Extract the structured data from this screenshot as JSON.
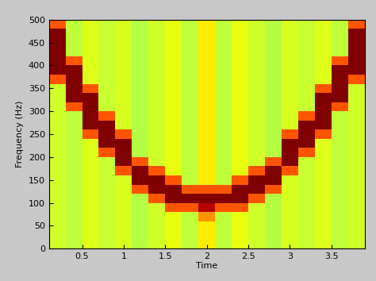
{
  "chart_data": {
    "type": "heatmap",
    "x_label": "Time",
    "y_label": "Frequency (Hz)",
    "x_edges": [
      0.1,
      0.3,
      0.5,
      0.7,
      0.9,
      1.1,
      1.3,
      1.5,
      1.7,
      1.9,
      2.1,
      2.3,
      2.5,
      2.7,
      2.9,
      3.1,
      3.3,
      3.5,
      3.7,
      3.9
    ],
    "y_edges": [
      0,
      20,
      40,
      60,
      80,
      100,
      120,
      140,
      160,
      180,
      200,
      220,
      240,
      260,
      280,
      300,
      320,
      340,
      360,
      380,
      400,
      420,
      440,
      460,
      480,
      500
    ],
    "cells": [
      [
        60,
        60,
        60,
        60,
        60,
        60,
        60,
        60,
        60,
        60,
        60,
        60,
        60,
        60,
        60,
        60,
        60,
        60,
        82,
        100,
        100,
        100,
        100,
        100,
        82
      ],
      [
        58,
        58,
        58,
        58,
        58,
        58,
        58,
        58,
        58,
        58,
        58,
        58,
        58,
        58,
        58,
        82,
        100,
        100,
        100,
        100,
        82,
        58,
        58,
        58,
        58
      ],
      [
        62,
        62,
        62,
        62,
        62,
        62,
        62,
        62,
        62,
        62,
        62,
        62,
        82,
        100,
        100,
        100,
        100,
        82,
        62,
        62,
        62,
        62,
        62,
        62,
        62
      ],
      [
        59,
        59,
        59,
        59,
        59,
        59,
        59,
        59,
        59,
        59,
        82,
        100,
        100,
        100,
        82,
        59,
        59,
        59,
        59,
        59,
        59,
        59,
        59,
        59,
        59
      ],
      [
        61,
        61,
        61,
        61,
        61,
        61,
        61,
        61,
        82,
        100,
        100,
        100,
        82,
        61,
        61,
        61,
        61,
        61,
        61,
        61,
        61,
        61,
        61,
        61,
        61
      ],
      [
        57,
        57,
        57,
        57,
        57,
        57,
        82,
        100,
        100,
        82,
        57,
        57,
        57,
        57,
        57,
        57,
        57,
        57,
        57,
        57,
        57,
        57,
        57,
        57,
        57
      ],
      [
        60,
        60,
        60,
        60,
        60,
        82,
        100,
        100,
        82,
        60,
        60,
        60,
        60,
        60,
        60,
        60,
        60,
        60,
        60,
        60,
        60,
        60,
        60,
        60,
        60
      ],
      [
        63,
        63,
        63,
        63,
        82,
        100,
        100,
        82,
        63,
        63,
        63,
        63,
        63,
        63,
        63,
        63,
        63,
        63,
        63,
        63,
        63,
        63,
        63,
        63,
        63
      ],
      [
        58,
        58,
        58,
        58,
        82,
        100,
        82,
        58,
        58,
        58,
        58,
        58,
        58,
        58,
        58,
        58,
        58,
        58,
        58,
        58,
        58,
        58,
        58,
        58,
        58
      ],
      [
        66,
        66,
        66,
        75,
        95,
        100,
        82,
        66,
        66,
        66,
        66,
        66,
        66,
        66,
        66,
        66,
        66,
        66,
        66,
        66,
        66,
        66,
        66,
        66,
        66
      ],
      [
        58,
        58,
        58,
        58,
        82,
        100,
        82,
        58,
        58,
        58,
        58,
        58,
        58,
        58,
        58,
        58,
        58,
        58,
        58,
        58,
        58,
        58,
        58,
        58,
        58
      ],
      [
        63,
        63,
        63,
        63,
        82,
        100,
        100,
        82,
        63,
        63,
        63,
        63,
        63,
        63,
        63,
        63,
        63,
        63,
        63,
        63,
        63,
        63,
        63,
        63,
        63
      ],
      [
        60,
        60,
        60,
        60,
        60,
        82,
        100,
        100,
        82,
        60,
        60,
        60,
        60,
        60,
        60,
        60,
        60,
        60,
        60,
        60,
        60,
        60,
        60,
        60,
        60
      ],
      [
        57,
        57,
        57,
        57,
        57,
        57,
        82,
        100,
        100,
        82,
        57,
        57,
        57,
        57,
        57,
        57,
        57,
        57,
        57,
        57,
        57,
        57,
        57,
        57,
        57
      ],
      [
        61,
        61,
        61,
        61,
        61,
        61,
        61,
        61,
        82,
        100,
        100,
        100,
        82,
        61,
        61,
        61,
        61,
        61,
        61,
        61,
        61,
        61,
        61,
        61,
        61
      ],
      [
        59,
        59,
        59,
        59,
        59,
        59,
        59,
        59,
        59,
        59,
        82,
        100,
        100,
        100,
        82,
        59,
        59,
        59,
        59,
        59,
        59,
        59,
        59,
        59,
        59
      ],
      [
        62,
        62,
        62,
        62,
        62,
        62,
        62,
        62,
        62,
        62,
        62,
        62,
        82,
        100,
        100,
        100,
        100,
        82,
        62,
        62,
        62,
        62,
        62,
        62,
        62
      ],
      [
        58,
        58,
        58,
        58,
        58,
        58,
        58,
        58,
        58,
        58,
        58,
        58,
        58,
        58,
        58,
        82,
        100,
        100,
        100,
        100,
        82,
        58,
        58,
        58,
        58
      ],
      [
        60,
        60,
        60,
        60,
        60,
        60,
        60,
        60,
        60,
        60,
        60,
        60,
        60,
        60,
        60,
        60,
        60,
        60,
        82,
        100,
        100,
        100,
        100,
        100,
        82
      ]
    ],
    "clim": [
      0,
      100
    ],
    "xlim": [
      0.1,
      3.9
    ],
    "xticks": [
      0.5,
      1,
      1.5,
      2,
      2.5,
      3,
      3.5
    ],
    "ylim": [
      0,
      500
    ],
    "yticks": [
      0,
      50,
      100,
      150,
      200,
      250,
      300,
      350,
      400,
      450,
      500
    ]
  }
}
